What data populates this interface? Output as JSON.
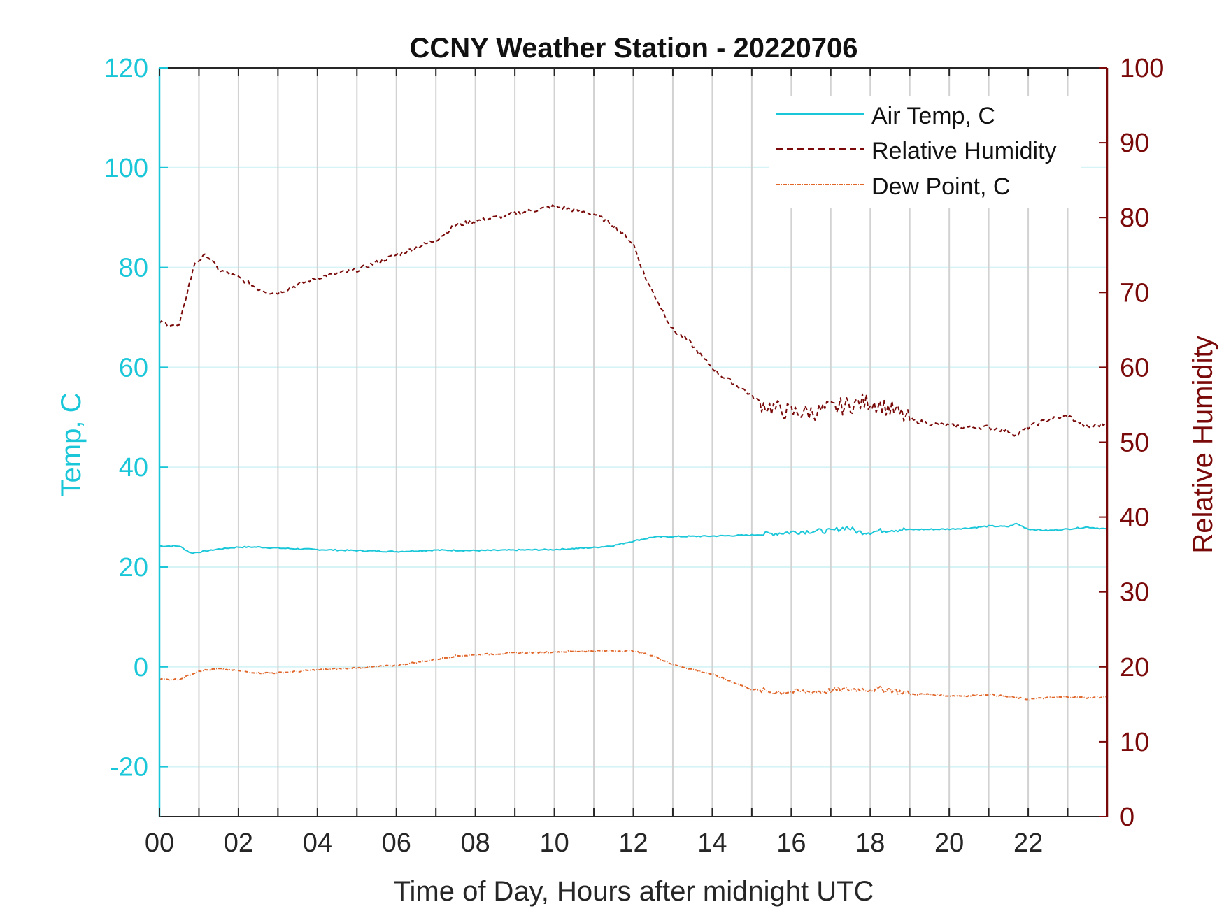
{
  "chart_data": {
    "type": "line",
    "title": "CCNY Weather Station - 20220706",
    "xlabel": "Time of Day, Hours after midnight UTC",
    "ylabel_left": "Temp, C",
    "ylabel_right": "Relative Humidity",
    "xlim": [
      0,
      24
    ],
    "ylim_left": [
      -30,
      120
    ],
    "ylim_right": [
      0,
      100
    ],
    "x_ticks": [
      0,
      2,
      4,
      6,
      8,
      10,
      12,
      14,
      16,
      18,
      20,
      22
    ],
    "x_tick_labels": [
      "00",
      "02",
      "04",
      "06",
      "08",
      "10",
      "12",
      "14",
      "16",
      "18",
      "20",
      "22"
    ],
    "y_left_ticks": [
      -20,
      0,
      20,
      40,
      60,
      80,
      100,
      120
    ],
    "y_left_tick_labels": [
      "-20",
      "0",
      "20",
      "40",
      "60",
      "80",
      "100",
      "120"
    ],
    "y_right_ticks": [
      0,
      10,
      20,
      30,
      40,
      50,
      60,
      70,
      80,
      90,
      100
    ],
    "y_right_tick_labels": [
      "0",
      "10",
      "20",
      "30",
      "40",
      "50",
      "60",
      "70",
      "80",
      "90",
      "100"
    ],
    "grid": true,
    "legend_position": "top-right",
    "colors": {
      "air_temp": "#19c7d9",
      "humidity": "#7a0a0a",
      "dew_point": "#e0662a",
      "grid_vertical": "#d2d2d2",
      "grid_horizontal": "#d6f3f6",
      "left_axis": "#19c7d9",
      "right_axis": "#7a0a0a"
    },
    "series": [
      {
        "name": "Air Temp, C",
        "axis": "left",
        "style": "solid",
        "x": [
          0,
          0.5,
          0.8,
          1,
          1.5,
          2,
          2.5,
          3,
          4,
          5,
          6,
          7,
          8,
          9,
          10,
          11,
          11.5,
          12,
          12.5,
          13,
          14,
          15,
          16,
          16.5,
          17,
          17.4,
          17.7,
          18,
          18.5,
          19,
          20,
          20.5,
          21,
          21.5,
          21.7,
          22,
          22.5,
          23,
          23.5,
          24
        ],
        "values": [
          24.2,
          24.2,
          22.8,
          23,
          23.6,
          24,
          24,
          23.8,
          23.5,
          23.3,
          23.1,
          23.4,
          23.3,
          23.4,
          23.5,
          23.9,
          24.3,
          25.2,
          26,
          26.1,
          26.2,
          26.4,
          27,
          27.2,
          27.2,
          28,
          27,
          27,
          27.5,
          27.5,
          27.6,
          27.8,
          28.2,
          28.1,
          28.7,
          27.6,
          27.3,
          27.6,
          28,
          27.6
        ]
      },
      {
        "name": "Relative Humidity",
        "axis": "right",
        "style": "dashed",
        "x": [
          0,
          0.5,
          0.7,
          0.9,
          1.2,
          1.5,
          2,
          2.5,
          2.8,
          3,
          3.5,
          4,
          4.5,
          5,
          5.5,
          6,
          6.5,
          7,
          7.5,
          8,
          8.5,
          9,
          9.5,
          10,
          10.5,
          11,
          11.5,
          12,
          12.3,
          12.6,
          13,
          13.4,
          13.8,
          14.2,
          14.8,
          15.3,
          15.6,
          16,
          16.5,
          17,
          17.5,
          18,
          18.5,
          19,
          19.5,
          20,
          20.5,
          21,
          21.5,
          21.7,
          22,
          22.5,
          23,
          23.5,
          24
        ],
        "values": [
          66,
          65.5,
          70,
          74,
          75,
          73,
          72,
          70.5,
          70,
          70,
          71,
          72,
          72.5,
          73,
          74,
          75,
          76,
          77,
          79,
          79.5,
          80,
          80.5,
          81,
          81.5,
          81,
          80.5,
          79,
          76.5,
          72,
          69,
          65,
          63.5,
          61,
          59,
          57,
          55,
          54.5,
          54,
          54,
          54.5,
          55,
          55.5,
          54.5,
          53,
          52.5,
          52.2,
          52,
          52,
          51.5,
          51,
          52,
          53,
          53.5,
          52,
          52.5
        ]
      },
      {
        "name": "Dew Point, C",
        "axis": "left",
        "style": "dash-dot",
        "x": [
          0,
          0.5,
          1,
          1.5,
          2,
          2.5,
          3,
          4,
          5,
          6,
          7,
          7.5,
          8,
          9,
          10,
          11,
          12,
          12.5,
          13,
          13.5,
          14,
          14.5,
          15,
          15.5,
          16,
          16.5,
          17,
          17.5,
          18,
          18.5,
          19,
          19.5,
          20,
          20.5,
          21,
          21.5,
          22,
          22.5,
          23,
          23.5,
          24
        ],
        "values": [
          -2.5,
          -2.5,
          -0.8,
          -0.4,
          -0.8,
          -1.2,
          -1.2,
          -0.6,
          -0.2,
          0.3,
          1.5,
          2.2,
          2.4,
          2.8,
          3,
          3.2,
          3.2,
          2.2,
          0.5,
          -0.5,
          -1.5,
          -3,
          -4.5,
          -5,
          -5,
          -5,
          -4.8,
          -4.5,
          -4.5,
          -4.5,
          -5.5,
          -5.5,
          -5.8,
          -5.8,
          -5.5,
          -6,
          -6.5,
          -6.2,
          -6,
          -6.2,
          -6
        ]
      }
    ]
  }
}
